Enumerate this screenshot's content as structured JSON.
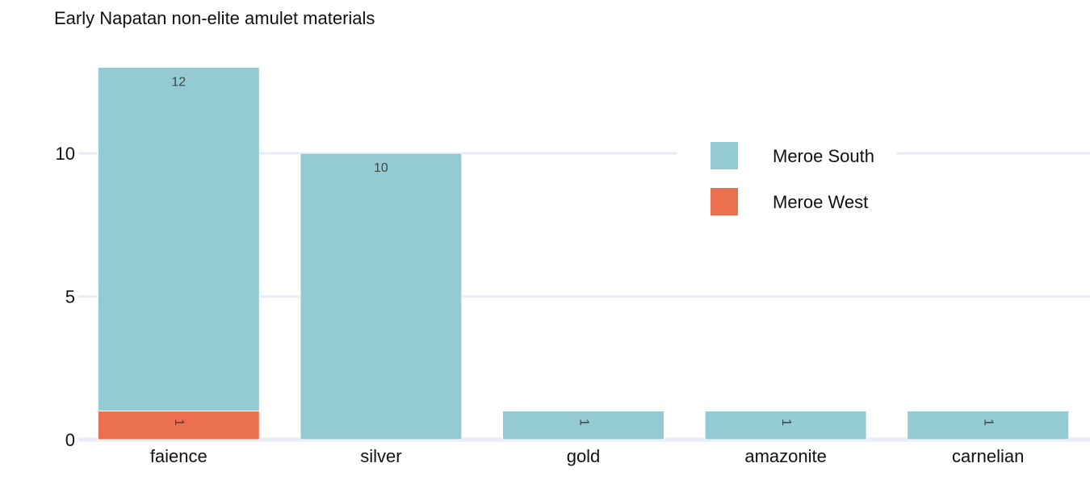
{
  "chart_data": {
    "type": "bar",
    "stacked": true,
    "title": "Early Napatan non-elite amulet materials",
    "xlabel": "",
    "ylabel": "",
    "categories": [
      "faience",
      "silver",
      "gold",
      "amazonite",
      "carnelian"
    ],
    "series": [
      {
        "name": "Meroe West",
        "color": "#eb714e",
        "values": [
          1,
          0,
          0,
          0,
          0
        ]
      },
      {
        "name": "Meroe South",
        "color": "#94cad1",
        "values": [
          12,
          10,
          1,
          1,
          1
        ]
      }
    ],
    "ylim": [
      0,
      13.3
    ],
    "yticks": [
      0,
      5,
      10
    ],
    "grid": true,
    "legend_position": "top-right",
    "data_labels": true
  }
}
